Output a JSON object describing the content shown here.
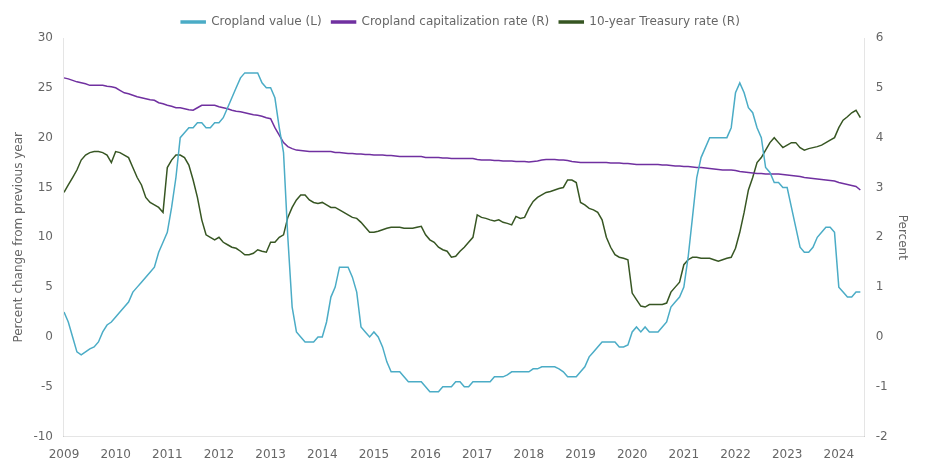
{
  "chart_data": {
    "type": "line",
    "ylabel": "Percent change from previous year",
    "y2label": "Percent",
    "xlim": [
      2009,
      2024.5
    ],
    "xticks": [
      2009,
      2010,
      2011,
      2012,
      2013,
      2014,
      2015,
      2016,
      2017,
      2018,
      2019,
      2020,
      2021,
      2022,
      2023,
      2024
    ],
    "ylim": [
      -10,
      30
    ],
    "yticks": [
      -10,
      -5,
      0,
      5,
      10,
      15,
      20,
      25,
      30
    ],
    "y2lim": [
      -2,
      6
    ],
    "y2ticks": [
      -2,
      -1,
      0,
      1,
      2,
      3,
      4,
      5,
      6
    ],
    "grid": false,
    "legend": "top",
    "x": [
      2009.0,
      2009.083,
      2009.167,
      2009.25,
      2009.333,
      2009.417,
      2009.5,
      2009.583,
      2009.667,
      2009.75,
      2009.833,
      2009.917,
      2010.0,
      2010.083,
      2010.167,
      2010.25,
      2010.333,
      2010.417,
      2010.5,
      2010.583,
      2010.667,
      2010.75,
      2010.833,
      2010.917,
      2011.0,
      2011.083,
      2011.167,
      2011.25,
      2011.333,
      2011.417,
      2011.5,
      2011.583,
      2011.667,
      2011.75,
      2011.833,
      2011.917,
      2012.0,
      2012.083,
      2012.167,
      2012.25,
      2012.333,
      2012.417,
      2012.5,
      2012.583,
      2012.667,
      2012.75,
      2012.833,
      2012.917,
      2013.0,
      2013.083,
      2013.167,
      2013.25,
      2013.333,
      2013.417,
      2013.5,
      2013.583,
      2013.667,
      2013.75,
      2013.833,
      2013.917,
      2014.0,
      2014.083,
      2014.167,
      2014.25,
      2014.333,
      2014.417,
      2014.5,
      2014.583,
      2014.667,
      2014.75,
      2014.833,
      2014.917,
      2015.0,
      2015.083,
      2015.167,
      2015.25,
      2015.333,
      2015.417,
      2015.5,
      2015.583,
      2015.667,
      2015.75,
      2015.833,
      2015.917,
      2016.0,
      2016.083,
      2016.167,
      2016.25,
      2016.333,
      2016.417,
      2016.5,
      2016.583,
      2016.667,
      2016.75,
      2016.833,
      2016.917,
      2017.0,
      2017.083,
      2017.167,
      2017.25,
      2017.333,
      2017.417,
      2017.5,
      2017.583,
      2017.667,
      2017.75,
      2017.833,
      2017.917,
      2018.0,
      2018.083,
      2018.167,
      2018.25,
      2018.333,
      2018.417,
      2018.5,
      2018.583,
      2018.667,
      2018.75,
      2018.833,
      2018.917,
      2019.0,
      2019.083,
      2019.167,
      2019.25,
      2019.333,
      2019.417,
      2019.5,
      2019.583,
      2019.667,
      2019.75,
      2019.833,
      2019.917,
      2020.0,
      2020.083,
      2020.167,
      2020.25,
      2020.333,
      2020.417,
      2020.5,
      2020.583,
      2020.667,
      2020.75,
      2020.833,
      2020.917,
      2021.0,
      2021.083,
      2021.167,
      2021.25,
      2021.333,
      2021.417,
      2021.5,
      2021.583,
      2021.667,
      2021.75,
      2021.833,
      2021.917,
      2022.0,
      2022.083,
      2022.167,
      2022.25,
      2022.333,
      2022.417,
      2022.5,
      2022.583,
      2022.667,
      2022.75,
      2022.833,
      2022.917,
      2023.0,
      2023.083,
      2023.167,
      2023.25,
      2023.333,
      2023.417,
      2023.5,
      2023.583,
      2023.667,
      2023.75,
      2023.833,
      2023.917,
      2024.0,
      2024.083,
      2024.167,
      2024.25,
      2024.333,
      2024.417
    ],
    "series": [
      {
        "name": "Cropland value (L)",
        "color": "#4bacc6",
        "values": [
          2.5,
          1.5,
          0.0,
          -1.5,
          -1.8,
          -1.5,
          -1.2,
          -1.0,
          -0.5,
          0.5,
          1.2,
          1.5,
          2.0,
          2.5,
          3.0,
          3.5,
          4.5,
          5.0,
          5.5,
          6.0,
          6.5,
          7.0,
          8.5,
          9.5,
          10.5,
          13.0,
          16.0,
          20.0,
          20.5,
          21.0,
          21.0,
          21.5,
          21.5,
          21.0,
          21.0,
          21.5,
          21.5,
          22.0,
          23.0,
          24.0,
          25.0,
          26.0,
          26.5,
          26.5,
          26.5,
          26.5,
          25.5,
          25.0,
          25.0,
          24.0,
          21.0,
          18.5,
          10.0,
          3.0,
          0.5,
          0.0,
          -0.5,
          -0.5,
          -0.5,
          0.0,
          0.0,
          1.5,
          4.0,
          5.0,
          7.0,
          7.0,
          7.0,
          6.0,
          4.5,
          1.0,
          0.5,
          0.0,
          0.5,
          0.0,
          -1.0,
          -2.5,
          -3.5,
          -3.5,
          -3.5,
          -4.0,
          -4.5,
          -4.5,
          -4.5,
          -4.5,
          -5.0,
          -5.5,
          -5.5,
          -5.5,
          -5.0,
          -5.0,
          -5.0,
          -4.5,
          -4.5,
          -5.0,
          -5.0,
          -4.5,
          -4.5,
          -4.5,
          -4.5,
          -4.5,
          -4.0,
          -4.0,
          -4.0,
          -3.8,
          -3.5,
          -3.5,
          -3.5,
          -3.5,
          -3.5,
          -3.2,
          -3.2,
          -3.0,
          -3.0,
          -3.0,
          -3.0,
          -3.2,
          -3.5,
          -4.0,
          -4.0,
          -4.0,
          -3.5,
          -3.0,
          -2.0,
          -1.5,
          -1.0,
          -0.5,
          -0.5,
          -0.5,
          -0.5,
          -1.0,
          -1.0,
          -0.8,
          0.5,
          1.0,
          0.5,
          1.0,
          0.5,
          0.5,
          0.5,
          1.0,
          1.5,
          3.0,
          3.5,
          4.0,
          5.0,
          8.0,
          12.0,
          16.0,
          18.0,
          19.0,
          20.0,
          20.0,
          20.0,
          20.0,
          20.0,
          21.0,
          24.5,
          25.5,
          24.5,
          23.0,
          22.5,
          21.0,
          20.0,
          17.0,
          16.5,
          15.5,
          15.5,
          15.0,
          15.0,
          13.0,
          11.0,
          9.0,
          8.5,
          8.5,
          9.0,
          10.0,
          10.5,
          11.0,
          11.0,
          10.5,
          5.0,
          4.5,
          4.0,
          4.0,
          4.5,
          4.5
        ]
      },
      {
        "name": "Cropland capitalization rate (R)",
        "color": "#7030a0",
        "axis": "y2",
        "values": [
          5.2,
          5.18,
          5.15,
          5.12,
          5.1,
          5.08,
          5.05,
          5.05,
          5.05,
          5.05,
          5.03,
          5.02,
          5.0,
          4.95,
          4.9,
          4.88,
          4.85,
          4.82,
          4.8,
          4.78,
          4.76,
          4.75,
          4.7,
          4.68,
          4.65,
          4.63,
          4.6,
          4.6,
          4.58,
          4.56,
          4.55,
          4.6,
          4.65,
          4.65,
          4.65,
          4.65,
          4.62,
          4.6,
          4.58,
          4.55,
          4.53,
          4.52,
          4.5,
          4.48,
          4.46,
          4.45,
          4.43,
          4.4,
          4.38,
          4.2,
          4.05,
          3.9,
          3.82,
          3.78,
          3.75,
          3.74,
          3.73,
          3.72,
          3.72,
          3.72,
          3.72,
          3.72,
          3.72,
          3.7,
          3.7,
          3.69,
          3.68,
          3.68,
          3.67,
          3.67,
          3.66,
          3.66,
          3.65,
          3.65,
          3.65,
          3.64,
          3.64,
          3.63,
          3.62,
          3.62,
          3.62,
          3.62,
          3.62,
          3.62,
          3.6,
          3.6,
          3.6,
          3.6,
          3.59,
          3.59,
          3.58,
          3.58,
          3.58,
          3.58,
          3.58,
          3.58,
          3.56,
          3.55,
          3.55,
          3.55,
          3.54,
          3.54,
          3.53,
          3.53,
          3.53,
          3.52,
          3.52,
          3.52,
          3.51,
          3.52,
          3.53,
          3.55,
          3.56,
          3.56,
          3.56,
          3.55,
          3.55,
          3.54,
          3.52,
          3.51,
          3.5,
          3.5,
          3.5,
          3.5,
          3.5,
          3.5,
          3.5,
          3.49,
          3.49,
          3.49,
          3.48,
          3.48,
          3.47,
          3.46,
          3.46,
          3.46,
          3.46,
          3.46,
          3.46,
          3.45,
          3.45,
          3.44,
          3.43,
          3.43,
          3.42,
          3.42,
          3.41,
          3.4,
          3.4,
          3.39,
          3.38,
          3.37,
          3.36,
          3.35,
          3.35,
          3.35,
          3.34,
          3.32,
          3.31,
          3.3,
          3.29,
          3.28,
          3.28,
          3.27,
          3.27,
          3.27,
          3.27,
          3.26,
          3.25,
          3.24,
          3.23,
          3.22,
          3.2,
          3.19,
          3.18,
          3.17,
          3.16,
          3.15,
          3.14,
          3.13,
          3.1,
          3.08,
          3.06,
          3.04,
          3.02,
          2.95
        ]
      },
      {
        "name": "10-year Treasury rate (R)",
        "color": "#375623",
        "axis": "y2",
        "values": [
          2.9,
          3.05,
          3.2,
          3.35,
          3.55,
          3.65,
          3.7,
          3.72,
          3.72,
          3.7,
          3.65,
          3.5,
          3.72,
          3.7,
          3.65,
          3.6,
          3.4,
          3.2,
          3.05,
          2.8,
          2.7,
          2.65,
          2.6,
          2.5,
          3.4,
          3.55,
          3.65,
          3.65,
          3.6,
          3.45,
          3.15,
          2.8,
          2.35,
          2.05,
          2.0,
          1.95,
          2.0,
          1.9,
          1.85,
          1.8,
          1.78,
          1.72,
          1.65,
          1.65,
          1.68,
          1.75,
          1.72,
          1.7,
          1.9,
          1.9,
          2.0,
          2.05,
          2.4,
          2.6,
          2.75,
          2.85,
          2.85,
          2.75,
          2.7,
          2.68,
          2.7,
          2.65,
          2.6,
          2.6,
          2.55,
          2.5,
          2.45,
          2.4,
          2.38,
          2.3,
          2.2,
          2.1,
          2.1,
          2.12,
          2.15,
          2.18,
          2.2,
          2.2,
          2.2,
          2.18,
          2.18,
          2.18,
          2.2,
          2.22,
          2.05,
          1.95,
          1.9,
          1.8,
          1.75,
          1.72,
          1.6,
          1.62,
          1.72,
          1.8,
          1.9,
          2.0,
          2.45,
          2.4,
          2.38,
          2.35,
          2.33,
          2.35,
          2.3,
          2.28,
          2.25,
          2.42,
          2.38,
          2.4,
          2.58,
          2.72,
          2.8,
          2.85,
          2.9,
          2.92,
          2.95,
          2.98,
          3.0,
          3.15,
          3.15,
          3.1,
          2.7,
          2.65,
          2.58,
          2.55,
          2.5,
          2.35,
          2.0,
          1.8,
          1.65,
          1.6,
          1.58,
          1.55,
          0.88,
          0.75,
          0.62,
          0.6,
          0.65,
          0.65,
          0.65,
          0.65,
          0.68,
          0.9,
          1.0,
          1.1,
          1.45,
          1.55,
          1.6,
          1.6,
          1.58,
          1.58,
          1.58,
          1.55,
          1.52,
          1.55,
          1.58,
          1.6,
          1.78,
          2.1,
          2.5,
          2.95,
          3.2,
          3.5,
          3.6,
          3.75,
          3.9,
          4.0,
          3.9,
          3.8,
          3.85,
          3.9,
          3.9,
          3.8,
          3.75,
          3.78,
          3.8,
          3.82,
          3.85,
          3.9,
          3.95,
          4.0,
          4.2,
          4.35,
          4.42,
          4.5,
          4.55,
          4.4
        ]
      }
    ]
  }
}
